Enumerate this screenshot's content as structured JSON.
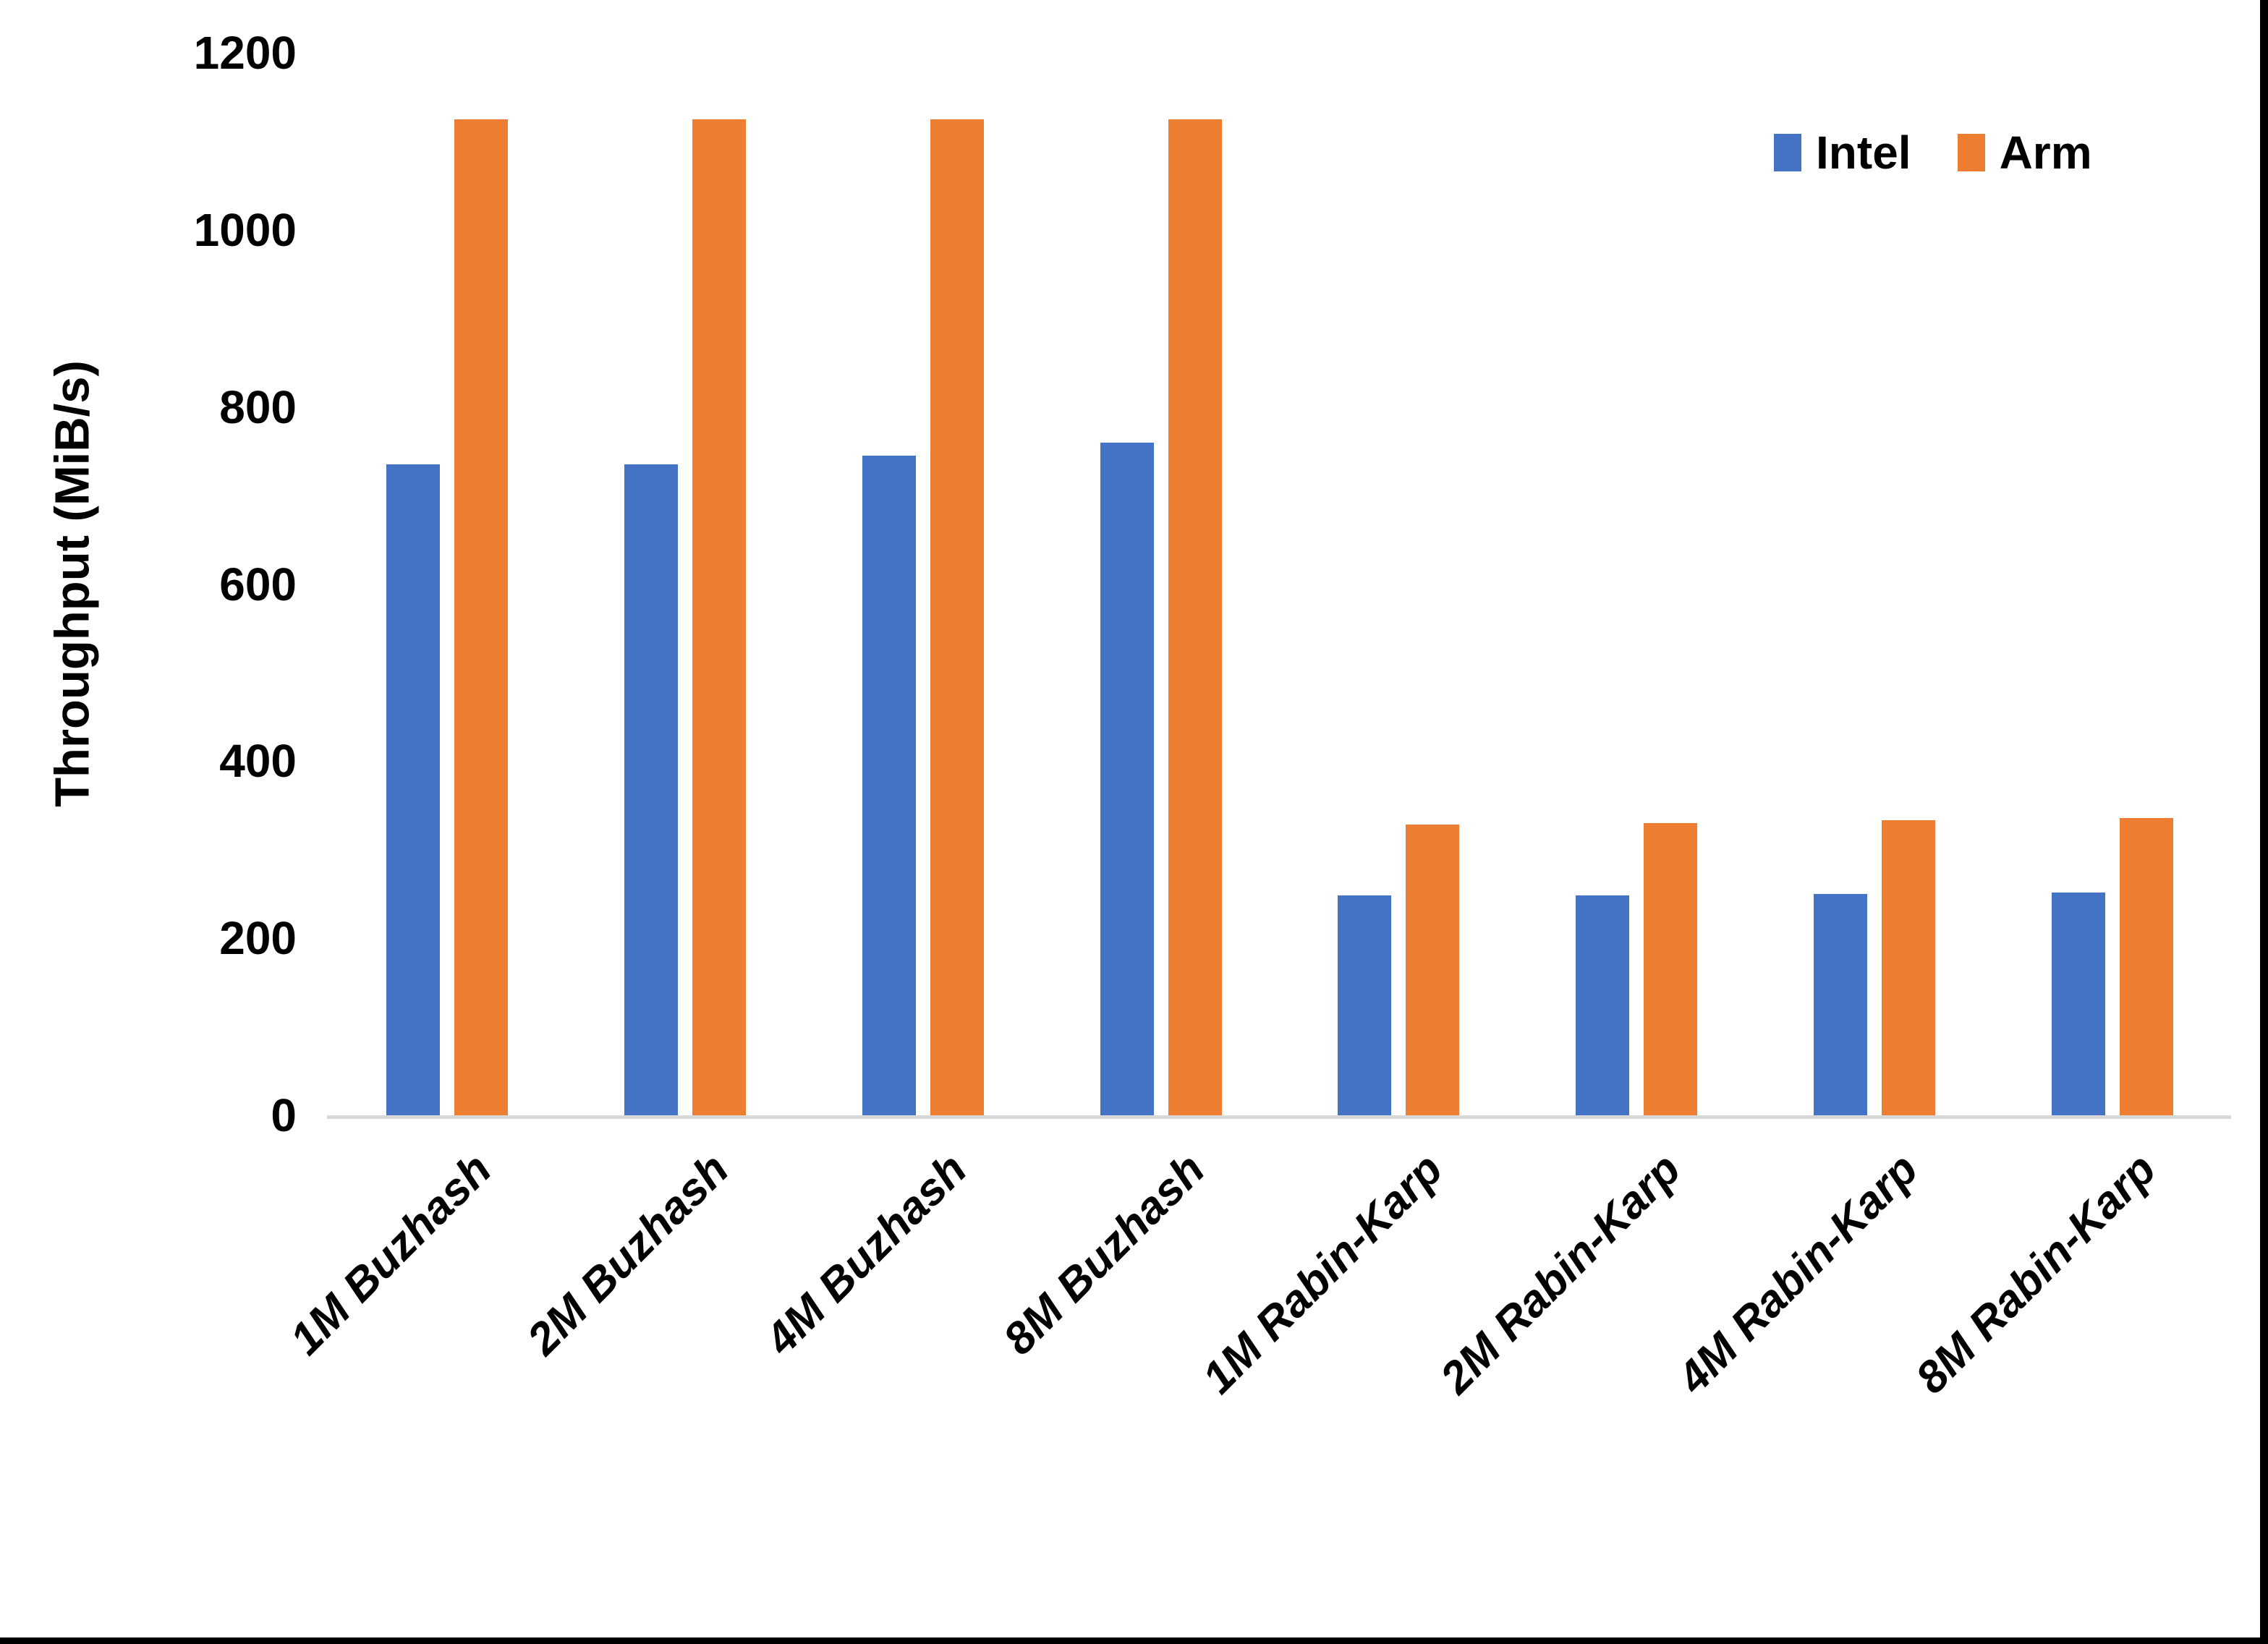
{
  "page": {
    "background": "#ffffff",
    "border_color": "#000000"
  },
  "chart_data": {
    "type": "bar",
    "title": "",
    "xlabel": "",
    "ylabel": "Throughput (MiB/s)",
    "ylim": [
      0,
      1200
    ],
    "yticks": [
      0,
      200,
      400,
      600,
      800,
      1000,
      1200
    ],
    "grid": false,
    "axis_line_color": "#d9d9d9",
    "legend_position": "top-right",
    "categories": [
      "1M Buzhash",
      "2M Buzhash",
      "4M Buzhash",
      "8M Buzhash",
      "1M Rabin-Karp",
      "2M Rabin-Karp",
      "4M Rabin-Karp",
      "8M Rabin-Karp"
    ],
    "series": [
      {
        "name": "Intel",
        "color": "#4472C4",
        "values": [
          735,
          735,
          745,
          760,
          248,
          248,
          250,
          252
        ]
      },
      {
        "name": "Arm",
        "color": "#ED7D31",
        "values": [
          1125,
          1125,
          1125,
          1125,
          328,
          330,
          333,
          336
        ]
      }
    ]
  }
}
